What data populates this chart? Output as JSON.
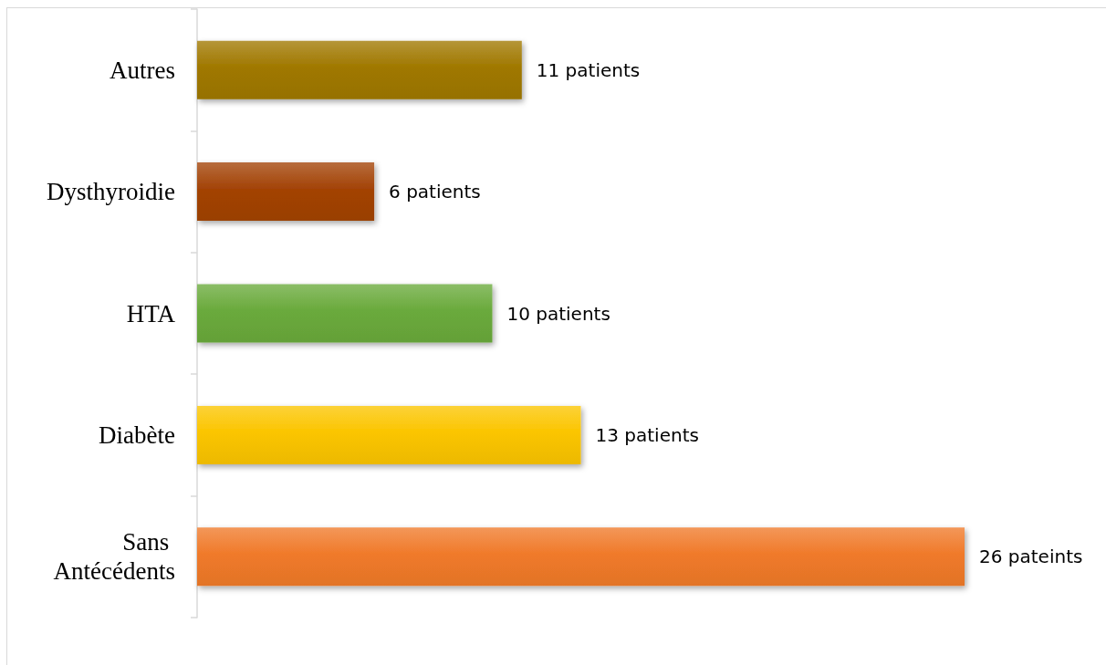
{
  "chart_data": {
    "type": "bar",
    "orientation": "horizontal",
    "categories": [
      "Autres",
      "Dysthyroidie",
      "HTA",
      "Diabète",
      "Sans Antécédents"
    ],
    "values": [
      11,
      6,
      10,
      13,
      26
    ],
    "colors": [
      "#a07800",
      "#a34306",
      "#6aaa3c",
      "#fbc500",
      "#f07a2a"
    ],
    "value_labels": [
      "11 patients",
      "6 patients",
      "10 patients",
      "13 patients",
      "26 pateints"
    ],
    "tick_labels": "y"
  }
}
